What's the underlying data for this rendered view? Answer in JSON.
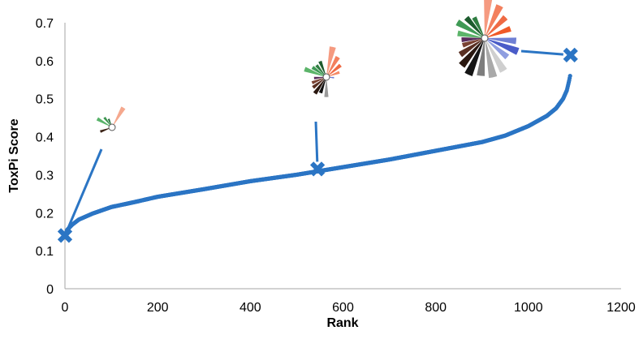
{
  "chart_data": {
    "type": "scatter",
    "title": "",
    "xlabel": "Rank",
    "ylabel": "ToxPi  Score",
    "xlim": [
      0,
      1200
    ],
    "ylim": [
      0,
      0.7
    ],
    "xticks": [
      "0",
      "200",
      "400",
      "600",
      "800",
      "1000",
      "1200"
    ],
    "yticks": [
      "0",
      "0.1",
      "0.2",
      "0.3",
      "0.4",
      "0.5",
      "0.6",
      "0.7"
    ],
    "grid": false,
    "legend": "none",
    "series_color": "#2b75c4",
    "curve": {
      "n": 1091,
      "control_points": [
        [
          0,
          0.14
        ],
        [
          5,
          0.155
        ],
        [
          15,
          0.168
        ],
        [
          30,
          0.182
        ],
        [
          60,
          0.198
        ],
        [
          100,
          0.215
        ],
        [
          150,
          0.228
        ],
        [
          200,
          0.242
        ],
        [
          300,
          0.262
        ],
        [
          400,
          0.283
        ],
        [
          500,
          0.3
        ],
        [
          545,
          0.309
        ],
        [
          600,
          0.32
        ],
        [
          700,
          0.34
        ],
        [
          800,
          0.363
        ],
        [
          900,
          0.386
        ],
        [
          950,
          0.403
        ],
        [
          1000,
          0.428
        ],
        [
          1040,
          0.455
        ],
        [
          1060,
          0.475
        ],
        [
          1075,
          0.5
        ],
        [
          1083,
          0.522
        ],
        [
          1088,
          0.548
        ],
        [
          1091,
          0.566
        ]
      ],
      "outlier": [
        1091,
        0.615
      ]
    },
    "highlighted_points": [
      {
        "x": 0,
        "y": 0.14
      },
      {
        "x": 545,
        "y": 0.315
      },
      {
        "x": 1091,
        "y": 0.615
      }
    ],
    "toxpi_profiles": [
      {
        "slices": [
          {
            "angle": 300,
            "r": 0.75,
            "color": "#59b36a"
          },
          {
            "angle": 322,
            "r": 0.55,
            "color": "#3d9650"
          },
          {
            "angle": 338,
            "r": 0.4,
            "color": "#1f6b35"
          },
          {
            "angle": 30,
            "r": 1.0,
            "color": "#f5a88e"
          },
          {
            "angle": 250,
            "r": 0.55,
            "color": "#3b2316"
          }
        ]
      },
      {
        "slices": [
          {
            "angle": 290,
            "r": 0.75,
            "color": "#5cb46a"
          },
          {
            "angle": 305,
            "r": 0.55,
            "color": "#3f9a55"
          },
          {
            "angle": 320,
            "r": 0.5,
            "color": "#2f7d41"
          },
          {
            "angle": 338,
            "r": 0.55,
            "color": "#1d5c2e"
          },
          {
            "angle": 12,
            "r": 1.0,
            "color": "#f59a80"
          },
          {
            "angle": 30,
            "r": 0.75,
            "color": "#f3805e"
          },
          {
            "angle": 50,
            "r": 0.6,
            "color": "#ef6a44"
          },
          {
            "angle": 70,
            "r": 0.45,
            "color": "#f58a66"
          },
          {
            "angle": 95,
            "r": 0.25,
            "color": "#6f7fd4"
          },
          {
            "angle": 180,
            "r": 0.65,
            "color": "#9a9a9a"
          },
          {
            "angle": 200,
            "r": 0.55,
            "color": "#111111"
          },
          {
            "angle": 215,
            "r": 0.65,
            "color": "#2a1810"
          },
          {
            "angle": 232,
            "r": 0.55,
            "color": "#5a3022"
          },
          {
            "angle": 248,
            "r": 0.5,
            "color": "#7a4232"
          },
          {
            "angle": 265,
            "r": 0.4,
            "color": "#5a2c5c"
          }
        ]
      },
      {
        "slices": [
          {
            "angle": 280,
            "r": 0.65,
            "color": "#5cb46a"
          },
          {
            "angle": 300,
            "r": 0.75,
            "color": "#3f9a55"
          },
          {
            "angle": 318,
            "r": 0.65,
            "color": "#1d5c2e"
          },
          {
            "angle": 333,
            "r": 0.55,
            "color": "#2f7d41"
          },
          {
            "angle": 5,
            "r": 1.0,
            "color": "#f59a80"
          },
          {
            "angle": 25,
            "r": 0.85,
            "color": "#f3805e"
          },
          {
            "angle": 45,
            "r": 0.7,
            "color": "#ef6a44"
          },
          {
            "angle": 70,
            "r": 0.65,
            "color": "#f05a28"
          },
          {
            "angle": 95,
            "r": 0.75,
            "color": "#6f7fd4"
          },
          {
            "angle": 112,
            "r": 0.85,
            "color": "#4a5cc8"
          },
          {
            "angle": 130,
            "r": 0.7,
            "color": "#8f9ee0"
          },
          {
            "angle": 150,
            "r": 0.9,
            "color": "#cfcfcf"
          },
          {
            "angle": 168,
            "r": 0.95,
            "color": "#a9a9a9"
          },
          {
            "angle": 186,
            "r": 0.9,
            "color": "#7d7d7d"
          },
          {
            "angle": 204,
            "r": 0.95,
            "color": "#151515"
          },
          {
            "angle": 220,
            "r": 0.85,
            "color": "#2a1810"
          },
          {
            "angle": 236,
            "r": 0.7,
            "color": "#5a3022"
          },
          {
            "angle": 252,
            "r": 0.55,
            "color": "#7a4232"
          },
          {
            "angle": 266,
            "r": 0.55,
            "color": "#5a2c5c"
          }
        ]
      }
    ]
  }
}
